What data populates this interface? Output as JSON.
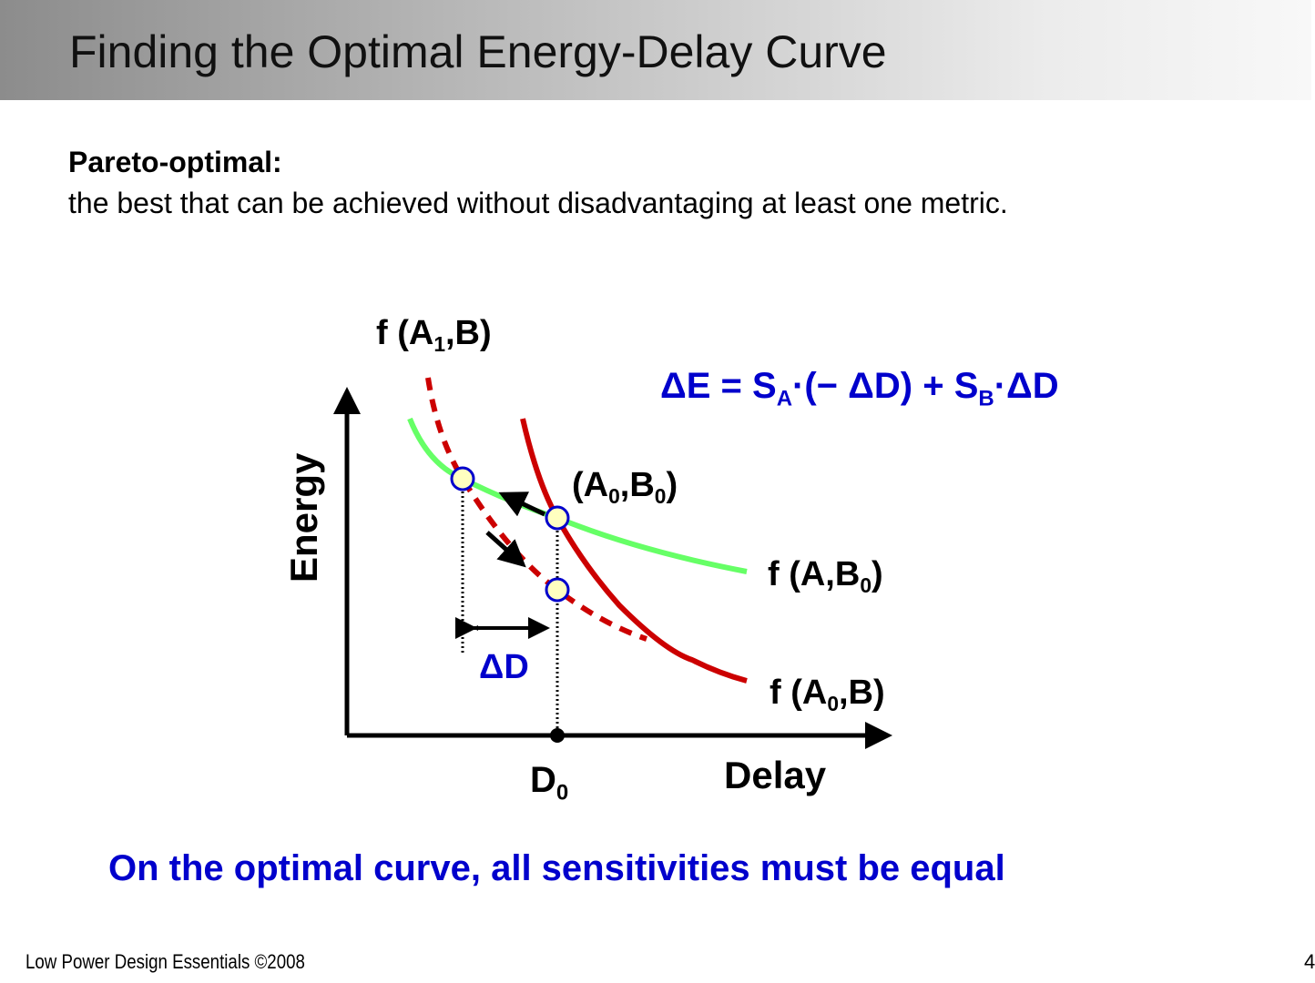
{
  "title": "Finding the Optimal Energy-Delay Curve",
  "definition": {
    "term": "Pareto-optimal:",
    "text": "the best that can be achieved without disadvantaging at least one metric."
  },
  "diagram": {
    "y_axis": "Energy",
    "x_axis": "Delay",
    "d0": "D",
    "d0_sub": "0",
    "curve_a1": {
      "pre": "f (A",
      "sub": "1",
      "post": ",B)"
    },
    "curve_b0": {
      "pre": "f (A,B",
      "sub": "0",
      "post": ")"
    },
    "curve_a0": {
      "pre": "f (A",
      "sub": "0",
      "post": ",B)"
    },
    "point": {
      "a": "(A",
      "a_sub": "0",
      "mid": ",B",
      "b_sub": "0",
      "post": ")"
    },
    "delta_d": "ΔD",
    "equation": {
      "p1": "ΔE = S",
      "s1": "A",
      "p2": "·(− ΔD) + S",
      "s2": "B",
      "p3": "·ΔD"
    },
    "colors": {
      "green": "#66ff66",
      "red": "#cc0000",
      "blue": "#0000cc"
    }
  },
  "conclusion": "On the optimal curve, all sensitivities must be equal",
  "footer": {
    "left": "Low Power Design Essentials ©2008",
    "page": "4"
  }
}
